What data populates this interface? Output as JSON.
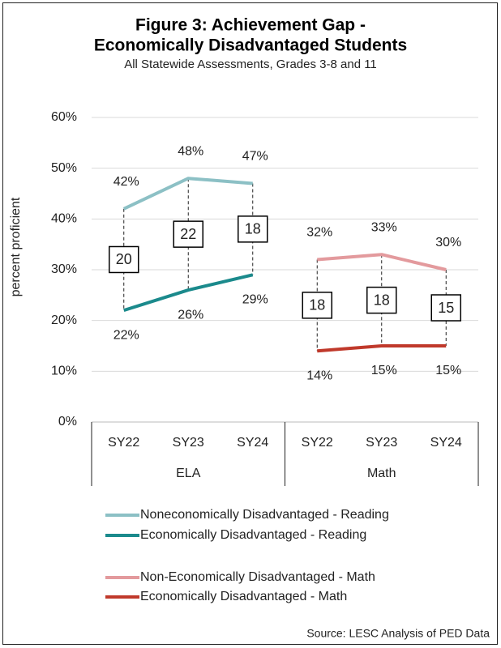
{
  "chart_data": {
    "type": "line",
    "title": [
      "Figure 3: Achievement Gap -",
      "Economically Disadvantaged Students"
    ],
    "subtitle": "All Statewide Assessments, Grades 3-8 and 11",
    "y_label": "percent proficient",
    "source": "Source: LESC Analysis of PED Data",
    "categories": [
      "SY22",
      "SY23",
      "SY24",
      "SY22",
      "SY23",
      "SY24"
    ],
    "groups": [
      "ELA",
      "Math"
    ],
    "ylim": [
      0,
      60
    ],
    "yticks": [
      {
        "value": 0,
        "label": "0%"
      },
      {
        "value": 10,
        "label": "10%"
      },
      {
        "value": 20,
        "label": "20%"
      },
      {
        "value": 30,
        "label": "30%"
      },
      {
        "value": 40,
        "label": "40%"
      },
      {
        "value": 50,
        "label": "50%"
      },
      {
        "value": 60,
        "label": "60%"
      }
    ],
    "grid": true,
    "series": [
      {
        "name": "Noneconomically Disadvantaged - Reading",
        "color": "#8cc0c5",
        "values": [
          42,
          48,
          47,
          null,
          null,
          null
        ],
        "value_labels": [
          "42%",
          "48%",
          "47%",
          null,
          null,
          null
        ],
        "label_position": "above"
      },
      {
        "name": "Economically Disadvantaged - Reading",
        "color": "#1b8a8c",
        "values": [
          22,
          26,
          29,
          null,
          null,
          null
        ],
        "value_labels": [
          "22%",
          "26%",
          "29%",
          null,
          null,
          null
        ],
        "label_position": "below"
      },
      {
        "name": "Non-Economically Disadvantaged -  Math",
        "color": "#e39a9d",
        "values": [
          null,
          null,
          null,
          32,
          33,
          30
        ],
        "value_labels": [
          null,
          null,
          null,
          "32%",
          "33%",
          "30%"
        ],
        "label_position": "above"
      },
      {
        "name": "Economically Disadvantaged - Math",
        "color": "#c0392b",
        "values": [
          null,
          null,
          null,
          14,
          15,
          15
        ],
        "value_labels": [
          null,
          null,
          null,
          "14%",
          "15%",
          "15%"
        ],
        "label_position": "below"
      }
    ],
    "gaps": [
      20,
      22,
      18,
      18,
      18,
      15
    ]
  }
}
